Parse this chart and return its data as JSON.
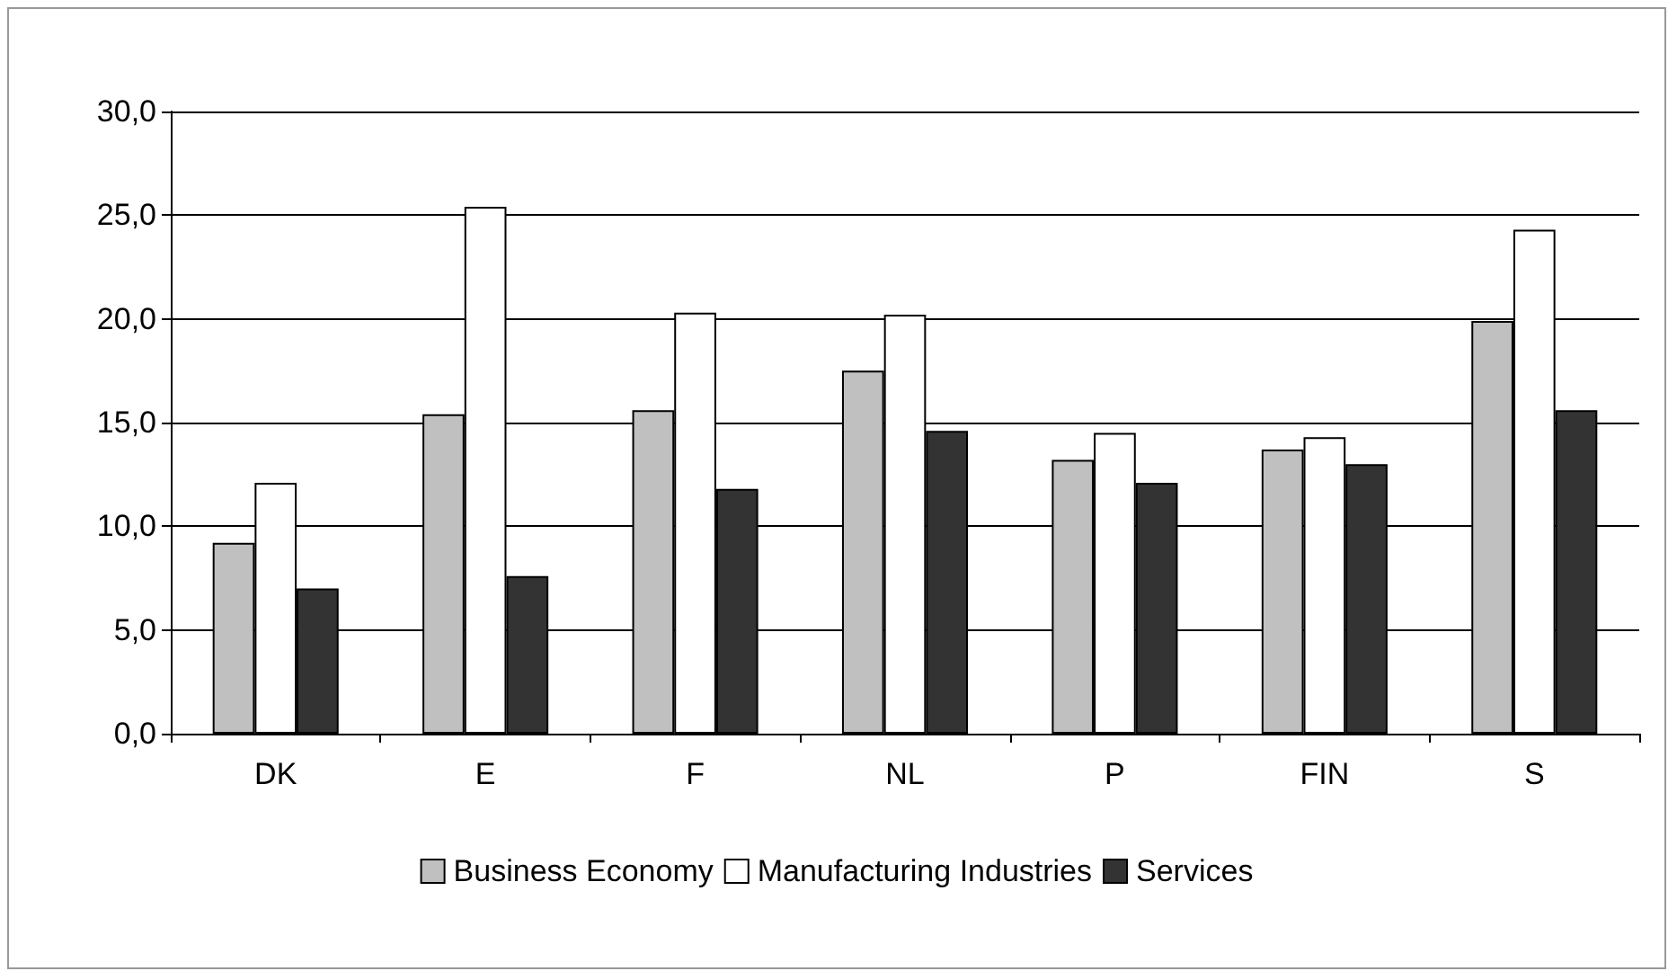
{
  "chart_data": {
    "type": "bar",
    "categories": [
      "DK",
      "E",
      "F",
      "NL",
      "P",
      "FIN",
      "S"
    ],
    "series": [
      {
        "name": "Business Economy",
        "color": "#c0c0c0",
        "values": [
          9.2,
          15.4,
          15.6,
          17.5,
          13.2,
          13.7,
          19.9
        ]
      },
      {
        "name": "Manufacturing Industries",
        "color": "#ffffff",
        "values": [
          12.1,
          25.4,
          20.3,
          20.2,
          14.5,
          14.3,
          24.3
        ]
      },
      {
        "name": "Services",
        "color": "#333333",
        "values": [
          7.0,
          7.6,
          11.8,
          14.6,
          12.1,
          13.0,
          15.6
        ]
      }
    ],
    "ylim": [
      0,
      30
    ],
    "yticks": [
      {
        "value": 0,
        "label": "0,0"
      },
      {
        "value": 5,
        "label": "5,0"
      },
      {
        "value": 10,
        "label": "10,0"
      },
      {
        "value": 15,
        "label": "15,0"
      },
      {
        "value": 20,
        "label": "20,0"
      },
      {
        "value": 25,
        "label": "25,0"
      },
      {
        "value": 30,
        "label": "30,0"
      }
    ],
    "grid": "y",
    "legend": "bottom"
  }
}
